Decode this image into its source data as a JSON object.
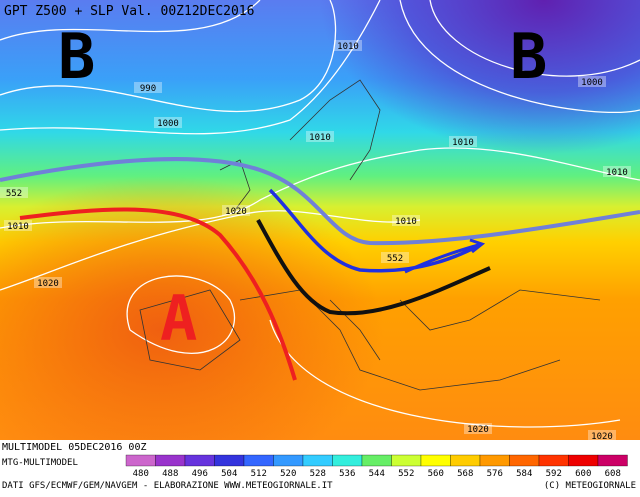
{
  "header": {
    "title": "GPT Z500 + SLP Val. 00Z12DEC2016"
  },
  "pressure_centres": [
    "B",
    "B",
    "A"
  ],
  "contour_labels": [
    "990",
    "1000",
    "1010",
    "1000",
    "1010",
    "1010",
    "1010",
    "552",
    "1010",
    "1020",
    "1010",
    "552",
    "1020",
    "1020",
    "1020"
  ],
  "footer": {
    "run": "MULTIMODEL 05DEC2016 00Z",
    "model": "MTG-MULTIMODEL",
    "sources": "DATI GFS/ECMWF/GEM/NAVGEM - ELABORAZIONE WWW.METEOGIORNALE.IT",
    "copyright": "(C) METEOGIORNALE"
  },
  "colorbar": {
    "labels": [
      480,
      488,
      496,
      504,
      512,
      520,
      528,
      536,
      544,
      552,
      560,
      568,
      576,
      584,
      592,
      600,
      608
    ]
  }
}
